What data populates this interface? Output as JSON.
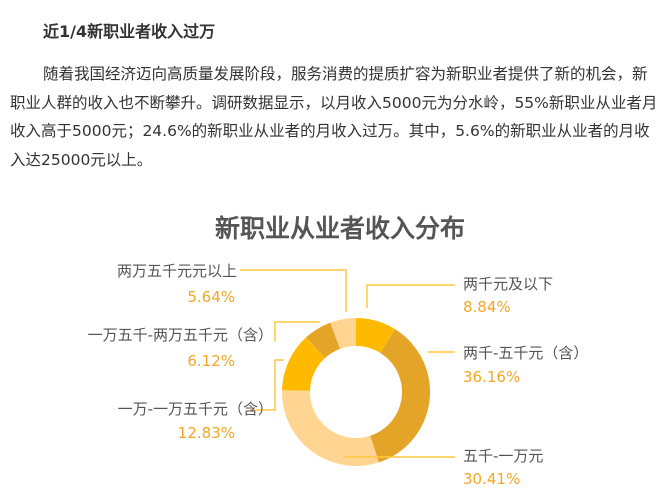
{
  "heading": "近1/4新职业者收入过万",
  "paragraph": "随着我国经济迈向高质量发展阶段，服务消费的提质扩容为新职业者提供了新的机会，新职业人群的收入也不断攀升。调研数据显示，以月收入5000元为分水岭，55%新职业从业者月收入高于5000元；24.6%的新职业从业者的月收入过万。其中，5.6%的新职业从业者的月收入达25000元以上。",
  "chart_data": {
    "type": "pie",
    "donut": true,
    "title": "新职业从业者收入分布",
    "categories": [
      "两千元及以下",
      "两千-五千元（含）",
      "五千-一万元",
      "一万-一万五千元（含）",
      "一万五千-两万五千元（含）",
      "两万五千元元以上"
    ],
    "values": [
      8.84,
      36.16,
      30.41,
      12.83,
      6.12,
      5.64
    ],
    "labels": [
      "8.84%",
      "36.16%",
      "30.41%",
      "12.83%",
      "6.12%",
      "5.64%"
    ],
    "colors": [
      "#ffba00",
      "#e3a428",
      "#ffd591",
      "#ffba00",
      "#e3a428",
      "#ffd591"
    ],
    "label_color": "#f5a623"
  }
}
